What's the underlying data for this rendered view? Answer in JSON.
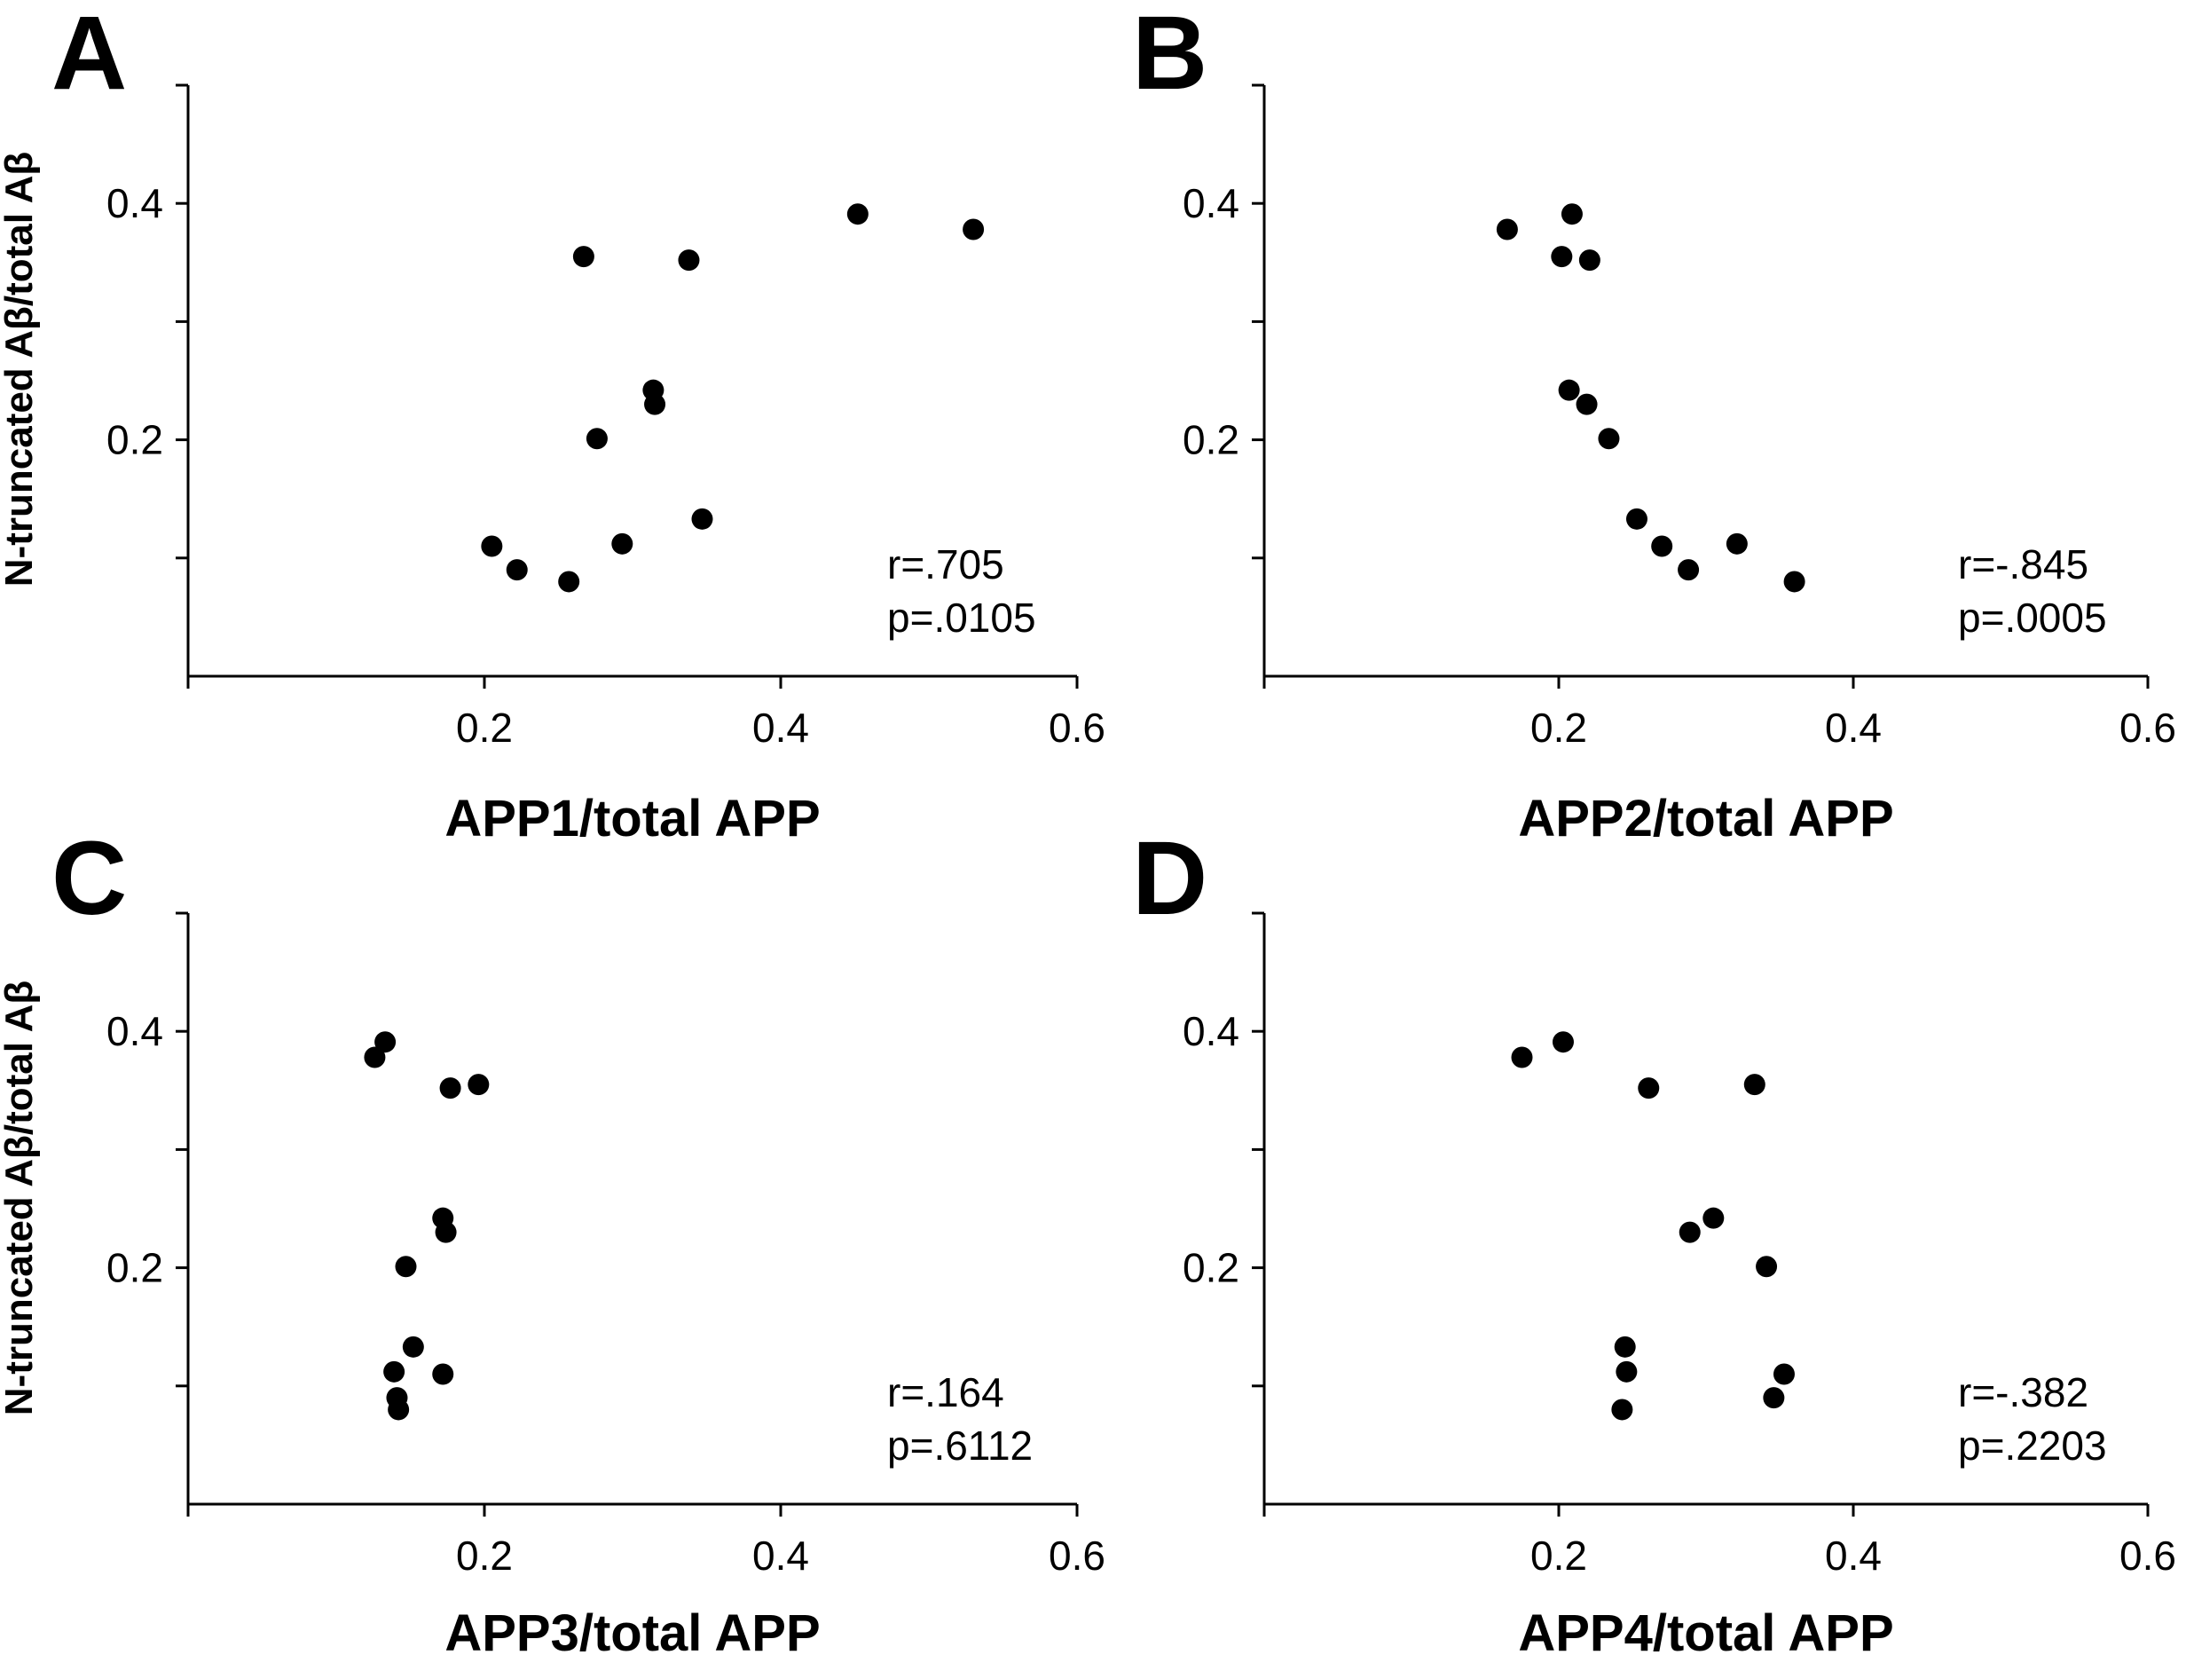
{
  "chart_data": [
    {
      "type": "scatter",
      "panel_label": "A",
      "xlabel": "APP1/total APP",
      "ylabel": "N-truncated Aβ/total Aβ",
      "xlim": [
        0,
        0.6
      ],
      "ylim": [
        0,
        0.5
      ],
      "xticks": [
        0.2,
        0.4,
        0.6
      ],
      "xtick_labels": [
        "0.2",
        "0.4",
        "0.6"
      ],
      "yticks": [
        0.1,
        0.2,
        0.3,
        0.4
      ],
      "ytick_labels": [
        "",
        "0.2",
        "",
        "0.4"
      ],
      "grid": false,
      "stats": [
        "r=.705",
        "p=.0105"
      ],
      "x": [
        0.205,
        0.222,
        0.257,
        0.267,
        0.276,
        0.293,
        0.314,
        0.315,
        0.338,
        0.347,
        0.452,
        0.53
      ],
      "y": [
        0.11,
        0.09,
        0.08,
        0.355,
        0.201,
        0.112,
        0.242,
        0.23,
        0.352,
        0.133,
        0.391,
        0.378
      ]
    },
    {
      "type": "scatter",
      "panel_label": "B",
      "xlabel": "APP2/total APP",
      "ylabel": "",
      "xlim": [
        0,
        0.6
      ],
      "ylim": [
        0,
        0.5
      ],
      "xticks": [
        0.2,
        0.4,
        0.6
      ],
      "xtick_labels": [
        "0.2",
        "0.4",
        "0.6"
      ],
      "yticks": [
        0.1,
        0.2,
        0.3,
        0.4
      ],
      "ytick_labels": [
        "",
        "0.2",
        "",
        "0.4"
      ],
      "grid": false,
      "stats": [
        "r=-.845",
        "p=.0005"
      ],
      "x": [
        0.165,
        0.202,
        0.207,
        0.209,
        0.219,
        0.221,
        0.234,
        0.253,
        0.27,
        0.288,
        0.321,
        0.36
      ],
      "y": [
        0.378,
        0.355,
        0.242,
        0.391,
        0.23,
        0.352,
        0.201,
        0.133,
        0.11,
        0.09,
        0.112,
        0.08
      ]
    },
    {
      "type": "scatter",
      "panel_label": "C",
      "xlabel": "APP3/total APP",
      "ylabel": "N-truncated Aβ/total Aβ",
      "xlim": [
        0,
        0.6
      ],
      "ylim": [
        0,
        0.5
      ],
      "xticks": [
        0.2,
        0.4,
        0.6
      ],
      "xtick_labels": [
        "0.2",
        "0.4",
        "0.6"
      ],
      "yticks": [
        0.1,
        0.2,
        0.3,
        0.4
      ],
      "ytick_labels": [
        "",
        "0.2",
        "",
        "0.4"
      ],
      "grid": false,
      "stats": [
        "r=.164",
        "p=.6112"
      ],
      "x": [
        0.126,
        0.133,
        0.139,
        0.141,
        0.142,
        0.147,
        0.152,
        0.172,
        0.172,
        0.174,
        0.177,
        0.196
      ],
      "y": [
        0.378,
        0.391,
        0.112,
        0.09,
        0.08,
        0.201,
        0.133,
        0.242,
        0.11,
        0.23,
        0.352,
        0.355
      ]
    },
    {
      "type": "scatter",
      "panel_label": "D",
      "xlabel": "APP4/total APP",
      "ylabel": "",
      "xlim": [
        0,
        0.6
      ],
      "ylim": [
        0,
        0.5
      ],
      "xticks": [
        0.2,
        0.4,
        0.6
      ],
      "xtick_labels": [
        "0.2",
        "0.4",
        "0.6"
      ],
      "yticks": [
        0.1,
        0.2,
        0.3,
        0.4
      ],
      "ytick_labels": [
        "",
        "0.2",
        "",
        "0.4"
      ],
      "grid": false,
      "stats": [
        "r=-.382",
        "p=.2203"
      ],
      "x": [
        0.175,
        0.203,
        0.243,
        0.245,
        0.246,
        0.261,
        0.289,
        0.305,
        0.333,
        0.341,
        0.346,
        0.353
      ],
      "y": [
        0.378,
        0.391,
        0.08,
        0.133,
        0.112,
        0.352,
        0.23,
        0.242,
        0.355,
        0.201,
        0.09,
        0.11
      ]
    }
  ]
}
